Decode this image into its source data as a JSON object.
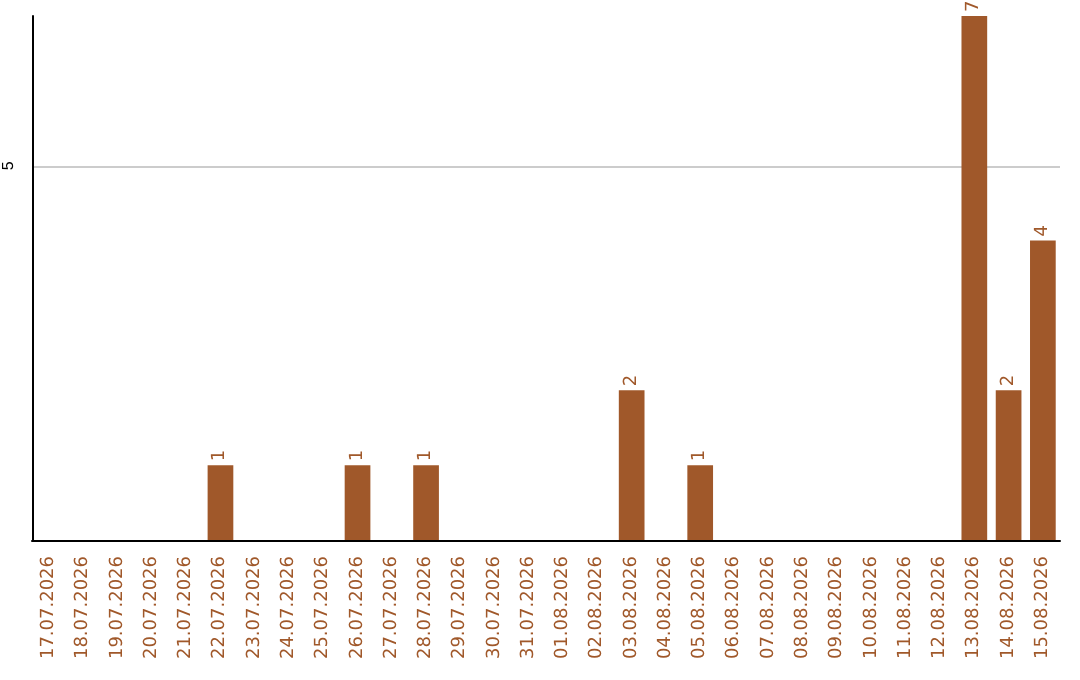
{
  "chart_data": {
    "type": "bar",
    "categories": [
      "17.07.2026",
      "18.07.2026",
      "19.07.2026",
      "20.07.2026",
      "21.07.2026",
      "22.07.2026",
      "23.07.2026",
      "24.07.2026",
      "25.07.2026",
      "26.07.2026",
      "27.07.2026",
      "28.07.2026",
      "29.07.2026",
      "30.07.2026",
      "31.07.2026",
      "01.08.2026",
      "02.08.2026",
      "03.08.2026",
      "04.08.2026",
      "05.08.2026",
      "06.08.2026",
      "07.08.2026",
      "08.08.2026",
      "09.08.2026",
      "10.08.2026",
      "11.08.2026",
      "12.08.2026",
      "13.08.2026",
      "14.08.2026",
      "15.08.2026"
    ],
    "values": [
      0,
      0,
      0,
      0,
      0,
      1,
      0,
      0,
      0,
      1,
      0,
      1,
      0,
      0,
      0,
      0,
      0,
      2,
      0,
      1,
      0,
      0,
      0,
      0,
      0,
      0,
      0,
      7,
      2,
      4
    ],
    "value_labels": [
      null,
      null,
      null,
      null,
      null,
      "1",
      null,
      null,
      null,
      "1",
      null,
      "1",
      null,
      null,
      null,
      null,
      null,
      "2",
      null,
      "1",
      null,
      null,
      null,
      null,
      null,
      null,
      null,
      "7",
      "2",
      "4"
    ],
    "color": "#a0582a",
    "ylim": [
      0,
      7
    ],
    "yticks": [
      5
    ],
    "grid": "y"
  }
}
